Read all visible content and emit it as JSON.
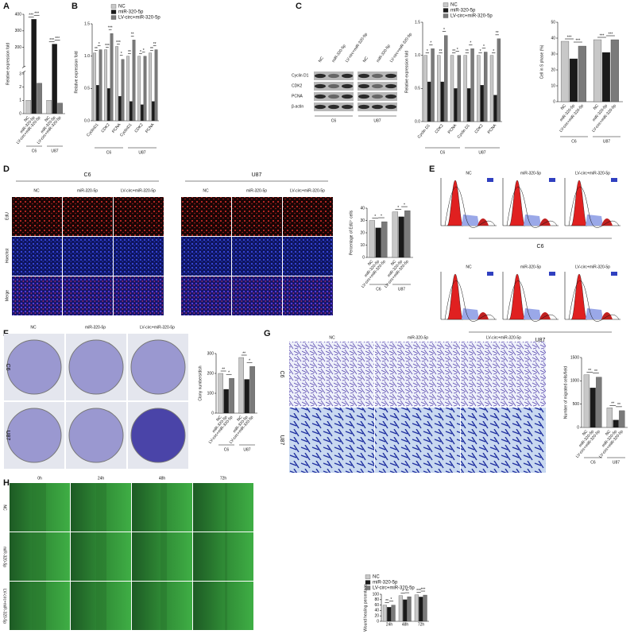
{
  "figure": {
    "panel_labels": [
      "A",
      "B",
      "C",
      "D",
      "E",
      "F",
      "G",
      "H"
    ],
    "blot": {
      "lanes": [
        "NC",
        "miR-320-5p",
        "LV-circ+miR-320-5p",
        "NC",
        "miR-320-5p",
        "LV-circ+miR-320-5p"
      ],
      "rows": [
        "Cyclin D1",
        "CDK2",
        "PCNA",
        "β-actin"
      ],
      "groups": [
        "C6",
        "U87"
      ]
    },
    "edu": {
      "groups": [
        "C6",
        "U87"
      ],
      "columns": [
        "NC",
        "miR-320-5p",
        "LV-circ+miR-320-5p"
      ],
      "rows": [
        "EdU",
        "Hoechst",
        "Merge"
      ]
    },
    "flow": {
      "columns": [
        "NC",
        "miR-320-5p",
        "LV-circ+miR-320-5p"
      ],
      "groups": [
        "C6",
        "U87"
      ]
    },
    "colony": {
      "columns": [
        "NC",
        "miR-320-5p",
        "LV-circ+miR-320-5p"
      ],
      "rows": [
        "C6",
        "U87"
      ]
    },
    "transwell": {
      "columns": [
        "NC",
        "miR-320-5p",
        "LV-circ+miR-320-5p"
      ],
      "rows": [
        "C6",
        "U87"
      ]
    },
    "wound": {
      "columns": [
        "0h",
        "24h",
        "48h",
        "72h"
      ],
      "rows": [
        "NC",
        "miR-320-5p",
        "LV-circ+miR-320-5p"
      ]
    }
  },
  "chart_data": [
    {
      "type": "bar",
      "ylabel": "Relative expression fold",
      "categories": [
        "C6",
        "U87"
      ],
      "ylim": [
        0,
        400
      ],
      "ybreak": [
        3,
        100
      ],
      "yticks": [
        0,
        1,
        2,
        3,
        200,
        300,
        400
      ],
      "series": [
        {
          "name": "NC",
          "color": "#c8c8c8",
          "values": [
            1,
            1
          ]
        },
        {
          "name": "miR-320-5p",
          "color": "#1a1a1a",
          "values": [
            370,
            220
          ]
        },
        {
          "name": "LV-circ+miR-320-5p",
          "color": "#7a7a7a",
          "values": [
            2.3,
            0.8
          ]
        }
      ],
      "significance": [
        [
          "***",
          "***"
        ],
        [
          "***",
          "***"
        ]
      ]
    },
    {
      "type": "bar",
      "ylabel": "Relative expression fold",
      "legend": "top",
      "categories": [
        "CyclinD1",
        "CDK2",
        "PCNA",
        "CyclinD1",
        "CDK2",
        "PCNA"
      ],
      "groups": [
        "C6",
        "U87"
      ],
      "ylim": [
        0,
        1.5
      ],
      "yticks": [
        {
          "value": 0,
          "label": "0.0"
        },
        {
          "value": 0.5,
          "label": "0.5"
        },
        {
          "value": 1,
          "label": "1.0"
        },
        {
          "value": 1.5,
          "label": "1.5"
        }
      ],
      "series": [
        {
          "name": "NC",
          "color": "#c8c8c8",
          "values": [
            1.05,
            1.1,
            1.15,
            1.0,
            1.0,
            1.05
          ]
        },
        {
          "name": "miR-320-5p",
          "color": "#1a1a1a",
          "values": [
            0.55,
            0.5,
            0.38,
            0.3,
            0.25,
            0.3
          ]
        },
        {
          "name": "LV-circ+miR-320-5p",
          "color": "#7a7a7a",
          "values": [
            1.1,
            1.35,
            0.95,
            1.25,
            1.0,
            1.1
          ]
        }
      ],
      "significance": [
        [
          "**",
          "*"
        ],
        [
          "***",
          "***"
        ],
        [
          "***",
          "*"
        ],
        [
          "**",
          "**"
        ],
        [
          "*",
          "*"
        ],
        [
          "**",
          "**"
        ]
      ]
    },
    {
      "type": "bar",
      "ylabel": "Relative expression fold",
      "legend": "top",
      "categories": [
        "Cyclin D1",
        "CDK2",
        "PCNA",
        "Cyclin D1",
        "CDK2",
        "PCNA"
      ],
      "groups": [
        "C6",
        "U87"
      ],
      "ylim": [
        0,
        1.5
      ],
      "yticks": [
        {
          "value": 0,
          "label": "0.0"
        },
        {
          "value": 0.5,
          "label": "0.5"
        },
        {
          "value": 1,
          "label": "1.0"
        },
        {
          "value": 1.5,
          "label": "1.5"
        }
      ],
      "series": [
        {
          "name": "NC",
          "color": "#c8c8c8",
          "values": [
            1,
            1,
            1,
            1,
            1,
            1
          ]
        },
        {
          "name": "miR-320-5p",
          "color": "#1a1a1a",
          "values": [
            0.6,
            0.6,
            0.5,
            0.5,
            0.55,
            0.4
          ]
        },
        {
          "name": "LV-circ+miR-320-5p",
          "color": "#7a7a7a",
          "values": [
            1.1,
            1.3,
            1.0,
            1.1,
            1.05,
            1.25
          ]
        }
      ],
      "significance": [
        [
          "*",
          "*"
        ],
        [
          "**",
          "*"
        ],
        [
          "**",
          "*"
        ],
        [
          "**",
          "*"
        ],
        [
          "*",
          "*"
        ],
        [
          "*",
          "**"
        ]
      ]
    },
    {
      "type": "bar",
      "ylabel": "Cell in S phase (%)",
      "categories": [
        "C6",
        "U87"
      ],
      "ylim": [
        0,
        50
      ],
      "yticks": [
        0,
        10,
        20,
        30,
        40,
        50
      ],
      "series": [
        {
          "name": "NC",
          "color": "#c8c8c8",
          "values": [
            38,
            39
          ]
        },
        {
          "name": "miR-320-5p",
          "color": "#1a1a1a",
          "values": [
            27,
            31
          ]
        },
        {
          "name": "LV-circ+miR-320-5p",
          "color": "#7a7a7a",
          "values": [
            35,
            39
          ]
        }
      ],
      "significance": [
        [
          "***",
          "***"
        ],
        [
          "***",
          "***"
        ]
      ]
    },
    {
      "type": "bar",
      "ylabel": "Percentage of EdU⁺ cells",
      "categories": [
        "C6",
        "U87"
      ],
      "ylim": [
        0,
        40
      ],
      "yticks": [
        0,
        10,
        20,
        30,
        40
      ],
      "series": [
        {
          "name": "NC",
          "color": "#c8c8c8",
          "values": [
            30,
            37
          ]
        },
        {
          "name": "miR-320-5p",
          "color": "#1a1a1a",
          "values": [
            24,
            33
          ]
        },
        {
          "name": "LV-circ+miR-320-5p",
          "color": "#7a7a7a",
          "values": [
            29,
            38
          ]
        }
      ],
      "significance": [
        [
          "*",
          "*"
        ],
        [
          "*",
          "*"
        ]
      ]
    },
    {
      "type": "bar",
      "ylabel": "Clony numbers/dish",
      "categories": [
        "C6",
        "U87"
      ],
      "ylim": [
        0,
        300
      ],
      "yticks": [
        0,
        100,
        200,
        300
      ],
      "series": [
        {
          "name": "NC",
          "color": "#c8c8c8",
          "values": [
            200,
            280
          ]
        },
        {
          "name": "miR-320-5p",
          "color": "#1a1a1a",
          "values": [
            120,
            170
          ]
        },
        {
          "name": "LV-circ+miR-320-5p",
          "color": "#7a7a7a",
          "values": [
            175,
            235
          ]
        }
      ],
      "significance": [
        [
          "**",
          "*"
        ],
        [
          "**",
          "*"
        ]
      ]
    },
    {
      "type": "bar",
      "ylabel": "Number of migrated cells/field",
      "categories": [
        "C6",
        "U87"
      ],
      "ylim": [
        0,
        1500
      ],
      "yticks": [
        0,
        500,
        1000,
        1500
      ],
      "series": [
        {
          "name": "NC",
          "color": "#c8c8c8",
          "values": [
            1130,
            420
          ]
        },
        {
          "name": "miR-320-5p",
          "color": "#1a1a1a",
          "values": [
            850,
            160
          ]
        },
        {
          "name": "LV-circ+miR-320-5p",
          "color": "#7a7a7a",
          "values": [
            1080,
            360
          ]
        }
      ],
      "significance": [
        [
          "**",
          "**"
        ],
        [
          "**",
          "**"
        ]
      ]
    },
    {
      "type": "bar",
      "ylabel": "Wound healing percentage",
      "legend": "top",
      "categories": [
        "24h",
        "48h",
        "72h"
      ],
      "ylim": [
        0,
        100
      ],
      "yticks": [
        0,
        20,
        40,
        60,
        80,
        100
      ],
      "series": [
        {
          "name": "NC",
          "color": "#c8c8c8",
          "values": [
            60,
            95,
            98
          ]
        },
        {
          "name": "miR-320-5p",
          "color": "#1a1a1a",
          "values": [
            52,
            80,
            90
          ]
        },
        {
          "name": "LV-circ+miR-320-5p",
          "color": "#7a7a7a",
          "values": [
            60,
            91,
            97
          ]
        }
      ],
      "significance": [
        [
          "**",
          "*"
        ],
        [
          "*",
          "**"
        ],
        [
          "***",
          "***"
        ]
      ]
    }
  ]
}
